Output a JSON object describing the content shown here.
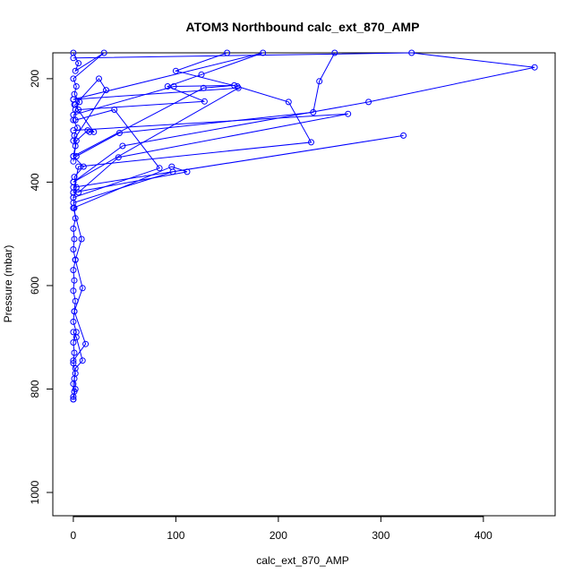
{
  "chart_data": {
    "type": "line",
    "title": "ATOM3 Northbound calc_ext_870_AMP",
    "xlabel": "calc_ext_870_AMP",
    "ylabel": "Pressure (mbar)",
    "xlim": [
      -20,
      470
    ],
    "ylim": [
      1045,
      150
    ],
    "y_reversed": true,
    "x_ticks": [
      0,
      100,
      200,
      300,
      400
    ],
    "y_ticks": [
      200,
      400,
      600,
      800,
      1000
    ],
    "grid": false,
    "legend": "none",
    "marker": "open-circle",
    "color": "#0000ff",
    "series": [
      {
        "x": [
          0,
          5,
          2,
          30,
          0,
          3,
          1,
          6,
          2,
          0,
          4,
          1,
          2,
          0,
          10,
          1,
          3,
          0,
          1,
          2,
          0,
          1,
          0,
          2,
          0,
          1,
          0,
          2,
          1,
          0,
          3,
          0,
          1,
          0,
          2,
          0,
          1,
          0,
          0
        ],
        "y": [
          150,
          170,
          185,
          150,
          200,
          215,
          230,
          245,
          260,
          280,
          295,
          310,
          330,
          350,
          370,
          390,
          410,
          430,
          450,
          470,
          490,
          510,
          530,
          550,
          570,
          590,
          610,
          630,
          650,
          670,
          690,
          710,
          730,
          750,
          770,
          790,
          805,
          815,
          820
        ]
      },
      {
        "x": [
          150,
          100,
          160,
          210,
          232,
          5,
          0
        ],
        "y": [
          148,
          185,
          215,
          245,
          323,
          370,
          420
        ]
      },
      {
        "x": [
          255,
          240,
          234,
          45,
          3
        ],
        "y": [
          148,
          205,
          265,
          305,
          350
        ]
      },
      {
        "x": [
          0,
          330,
          450,
          288,
          48,
          0
        ],
        "y": [
          160,
          150,
          178,
          245,
          330,
          400
        ]
      },
      {
        "x": [
          0,
          268,
          44,
          5
        ],
        "y": [
          300,
          268,
          352,
          420
        ]
      },
      {
        "x": [
          0,
          322,
          97,
          0
        ],
        "y": [
          410,
          310,
          380,
          440
        ]
      },
      {
        "x": [
          0,
          185,
          125,
          92,
          128,
          5
        ],
        "y": [
          240,
          148,
          192,
          215,
          244,
          260
        ]
      },
      {
        "x": [
          0,
          96,
          111,
          0
        ],
        "y": [
          450,
          370,
          380,
          420
        ]
      },
      {
        "x": [
          0,
          84,
          40,
          2
        ],
        "y": [
          430,
          373,
          260,
          280
        ]
      },
      {
        "x": [
          0,
          127,
          157,
          98,
          0
        ],
        "y": [
          350,
          218,
          213,
          215,
          270
        ]
      },
      {
        "x": [
          0,
          161,
          0
        ],
        "y": [
          400,
          218,
          240
        ]
      },
      {
        "x": [
          0,
          32,
          25,
          2
        ],
        "y": [
          320,
          222,
          200,
          250
        ]
      },
      {
        "x": [
          1,
          20,
          16,
          14,
          3,
          0
        ],
        "y": [
          250,
          303,
          303,
          300,
          320,
          360
        ]
      },
      {
        "x": [
          0,
          8,
          2,
          9,
          1,
          12,
          0
        ],
        "y": [
          450,
          510,
          550,
          605,
          650,
          713,
          745
        ]
      },
      {
        "x": [
          0,
          3,
          9,
          2,
          1,
          2,
          0
        ],
        "y": [
          690,
          700,
          745,
          760,
          780,
          800,
          820
        ]
      }
    ]
  }
}
